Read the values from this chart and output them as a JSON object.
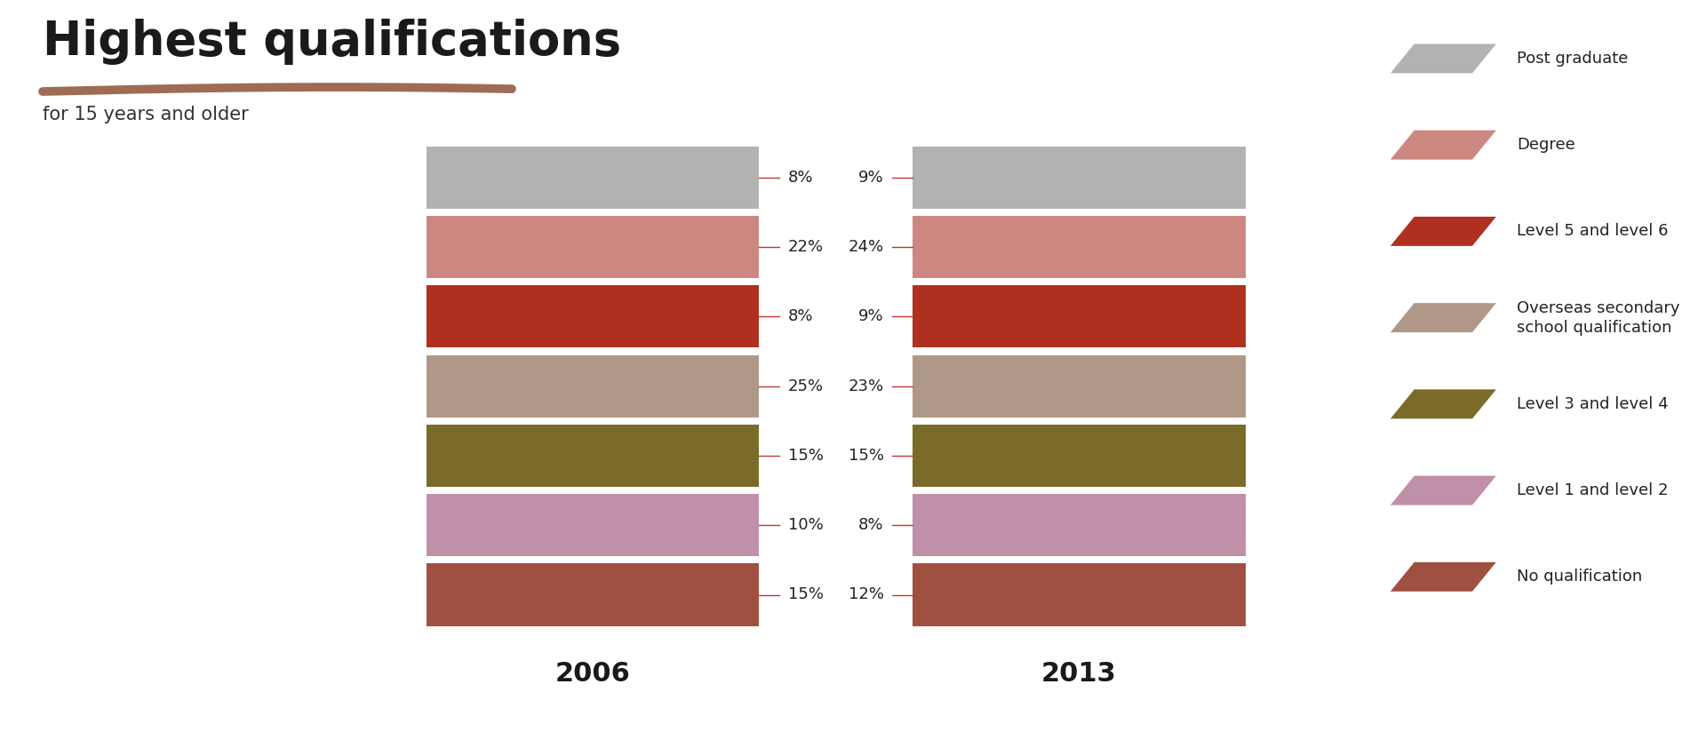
{
  "title": "Highest qualifications",
  "subtitle": "for 15 years and older",
  "background_color": "#ffffff",
  "title_fontsize": 38,
  "subtitle_fontsize": 15,
  "bar_label_fontsize": 13,
  "year_fontsize": 22,
  "legend_fontsize": 13,
  "colors": [
    "#b2b2b2",
    "#cc8880",
    "#b03020",
    "#b09888",
    "#7a6b2a",
    "#c090a8",
    "#a05040"
  ],
  "values_2006": [
    8,
    22,
    8,
    25,
    15,
    10,
    15
  ],
  "values_2013": [
    9,
    24,
    9,
    23,
    15,
    8,
    12
  ],
  "underline_color": "#9e6b55",
  "tick_color": "#c0392b",
  "label_color": "#222222",
  "legend_labels": [
    "Post graduate",
    "Degree",
    "Level 5 and level 6",
    "Overseas secondary\nschool qualification",
    "Level 3 and level 4",
    "Level 1 and level 2",
    "No qualification"
  ]
}
